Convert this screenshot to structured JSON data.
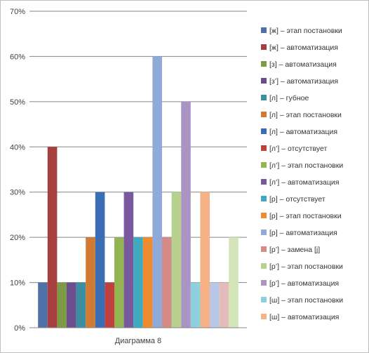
{
  "chart_data": {
    "type": "bar",
    "title": "",
    "xlabel": "",
    "ylabel": "",
    "categories": [
      "Диаграмма 8"
    ],
    "ylim": [
      0,
      70
    ],
    "y_ticks": [
      "0%",
      "10%",
      "20%",
      "30%",
      "40%",
      "50%",
      "60%",
      "70%"
    ],
    "grid": true,
    "legend": "right",
    "series": [
      {
        "name": "[ж] – этап постановки",
        "values": [
          10
        ],
        "color": "#4f6fa8"
      },
      {
        "name": "[ж] – автоматизация",
        "values": [
          40
        ],
        "color": "#a63f3d"
      },
      {
        "name": "[з] – автоматизация",
        "values": [
          10
        ],
        "color": "#7d9a45"
      },
      {
        "name": "[з’] – автоматизация",
        "values": [
          10
        ],
        "color": "#6a4e8e"
      },
      {
        "name": "[л] – губное",
        "values": [
          10
        ],
        "color": "#3c8fa3"
      },
      {
        "name": "[л] – этап постановки",
        "values": [
          20
        ],
        "color": "#d07a33"
      },
      {
        "name": "[л] – автоматизация",
        "values": [
          30
        ],
        "color": "#3b6db4"
      },
      {
        "name": "[л’] – отсутствует",
        "values": [
          10
        ],
        "color": "#c0403d"
      },
      {
        "name": "[л’] – этап постановки",
        "values": [
          20
        ],
        "color": "#92b552"
      },
      {
        "name": "[л’] – автоматизация",
        "values": [
          30
        ],
        "color": "#7a58a0"
      },
      {
        "name": "[р] – отсутствует",
        "values": [
          20
        ],
        "color": "#3fa9c0"
      },
      {
        "name": "[р] – этап постановки",
        "values": [
          20
        ],
        "color": "#ef8a2e"
      },
      {
        "name": "[р] – автоматизация",
        "values": [
          60
        ],
        "color": "#8fa9d8"
      },
      {
        "name": "[р’] – замена [j]",
        "values": [
          20
        ],
        "color": "#d48a86"
      },
      {
        "name": "[р’] – этап постановки",
        "values": [
          30
        ],
        "color": "#b6d090"
      },
      {
        "name": "[р’] – автоматизация",
        "values": [
          50
        ],
        "color": "#a994c4"
      },
      {
        "name": "[ш] – этап постановки",
        "values": [
          10
        ],
        "color": "#8fd0de"
      },
      {
        "name": "[ш] – автоматизация",
        "values": [
          30
        ],
        "color": "#f7b186"
      },
      {
        "name": "",
        "values": [
          10
        ],
        "color": "#b9c7e6"
      },
      {
        "name": "",
        "values": [
          10
        ],
        "color": "#e3bcba"
      },
      {
        "name": "",
        "values": [
          20
        ],
        "color": "#d3e4b8"
      }
    ]
  }
}
